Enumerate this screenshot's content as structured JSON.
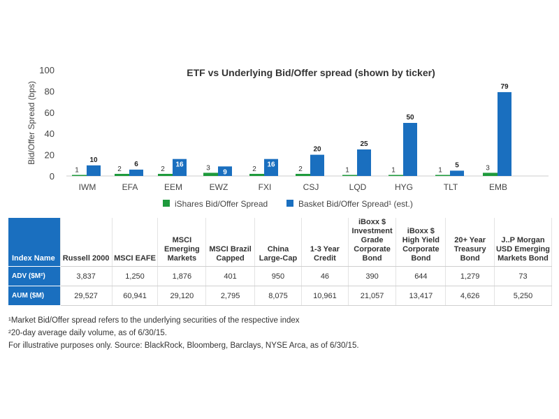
{
  "chart_data": {
    "type": "bar",
    "title": "ETF vs Underlying Bid/Offer spread (shown by ticker)",
    "ylabel": "Bid/Offer Spread (bps)",
    "xlabel": "",
    "ylim": [
      0,
      100
    ],
    "yticks": [
      0,
      20,
      40,
      60,
      80,
      100
    ],
    "grid": false,
    "legend_position": "bottom",
    "categories": [
      "IWM",
      "EFA",
      "EEM",
      "EWZ",
      "FXI",
      "CSJ",
      "LQD",
      "HYG",
      "TLT",
      "EMB"
    ],
    "series": [
      {
        "name": "iShares Bid/Offer Spread",
        "color": "#1e9a3c",
        "values": [
          1,
          2,
          2,
          3,
          2,
          2,
          1,
          1,
          1,
          3
        ]
      },
      {
        "name": "Basket Bid/Offer Spread¹ (est.)",
        "color": "#1a6fbf",
        "values": [
          10,
          6,
          16,
          9,
          16,
          20,
          25,
          50,
          5,
          79
        ]
      }
    ]
  },
  "table": {
    "headers": [
      "Index Name",
      "Russell 2000",
      "MSCI EAFE",
      "MSCI Emerging Markets",
      "MSCI Brazil Capped",
      "China Large-Cap",
      "1-3 Year Credit",
      "iBoxx $ Investment Grade Corporate Bond",
      "iBoxx $ High Yield Corporate Bond",
      "20+ Year Treasury Bond",
      "J..P Morgan USD Emerging Markets Bond"
    ],
    "rows": [
      {
        "label": "ADV ($M²)",
        "values": [
          "3,837",
          "1,250",
          "1,876",
          "401",
          "950",
          "46",
          "390",
          "644",
          "1,279",
          "73"
        ]
      },
      {
        "label": "AUM ($M)",
        "values": [
          "29,527",
          "60,941",
          "29,120",
          "2,795",
          "8,075",
          "10,961",
          "21,057",
          "13,417",
          "4,626",
          "5,250"
        ]
      }
    ]
  },
  "notes": [
    "¹Market Bid/Offer spread refers to the underlying securities of the respective index",
    "²20-day average daily volume, as of 6/30/15.",
    "For illustrative purposes only. Source: BlackRock, Bloomberg, Barclays, NYSE Arca, as of 6/30/15."
  ]
}
